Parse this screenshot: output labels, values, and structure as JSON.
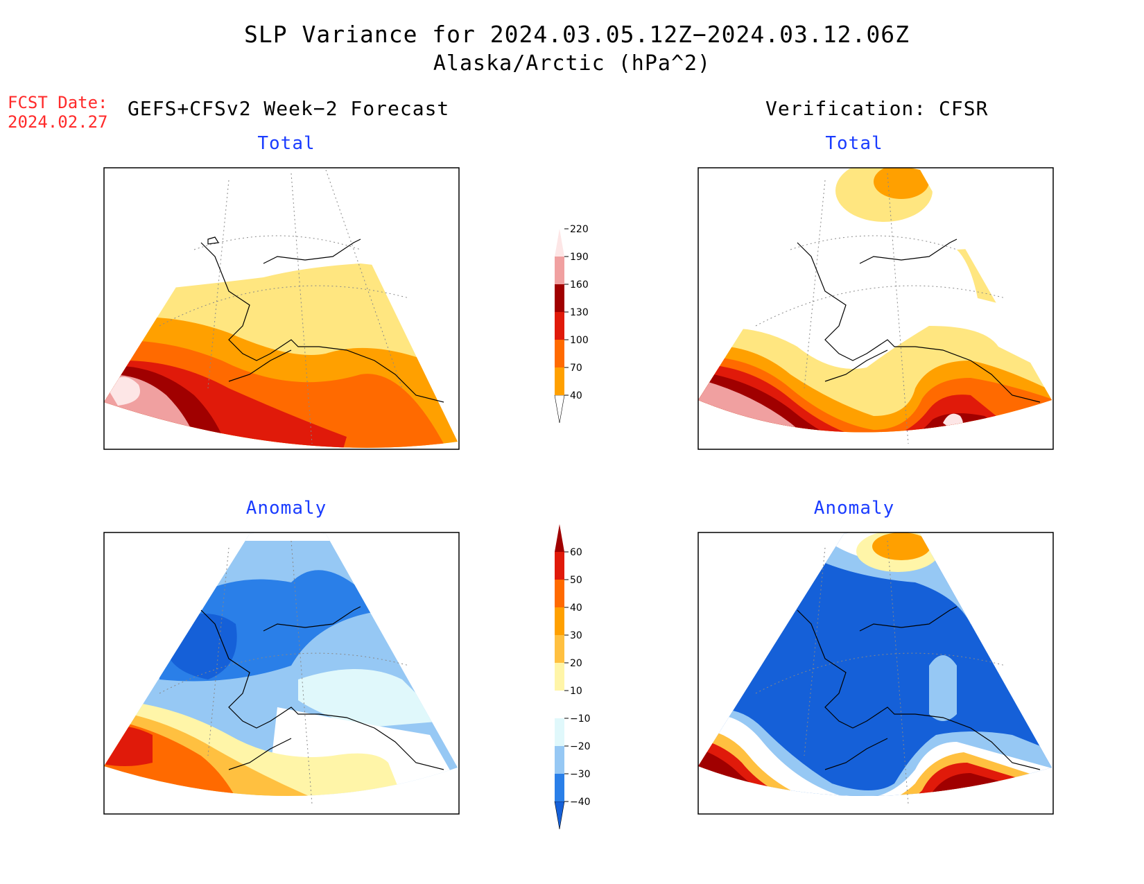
{
  "title": "SLP Variance for 2024.03.05.12Z−2024.03.12.06Z",
  "subtitle": "Alaska/Arctic (hPa^2)",
  "fcst_date_label": "FCST Date:",
  "fcst_date_value": "2024.02.27",
  "left_column_title": "GEFS+CFSv2 Week−2 Forecast",
  "right_column_title": "Verification: CFSR",
  "panels": {
    "forecast_total_title": "Total",
    "verification_total_title": "Total",
    "forecast_anomaly_title": "Anomaly",
    "verification_anomaly_title": "Anomaly"
  },
  "total_colorbar": {
    "labels": [
      "40",
      "70",
      "100",
      "130",
      "160",
      "190",
      "220"
    ],
    "colors": [
      "#ffe680",
      "#ffa000",
      "#ff6a00",
      "#e01a0a",
      "#a00000",
      "#f0a0a0",
      "#fde6e6"
    ]
  },
  "anomaly_colorbar": {
    "labels": [
      "−40",
      "−30",
      "−20",
      "−10",
      "10",
      "20",
      "30",
      "40",
      "50",
      "60"
    ],
    "colors": [
      "#1560d8",
      "#2a7fe8",
      "#96c8f4",
      "#e0f8fb",
      "#ffffff",
      "#fff5a8",
      "#ffc040",
      "#ffa000",
      "#ff6a00",
      "#e01a0a",
      "#a00000"
    ]
  },
  "colors": {
    "title_blue": "#1a3cff",
    "fcst_red": "#ff2a2a",
    "coast": "#000000",
    "grid": "#888888"
  }
}
